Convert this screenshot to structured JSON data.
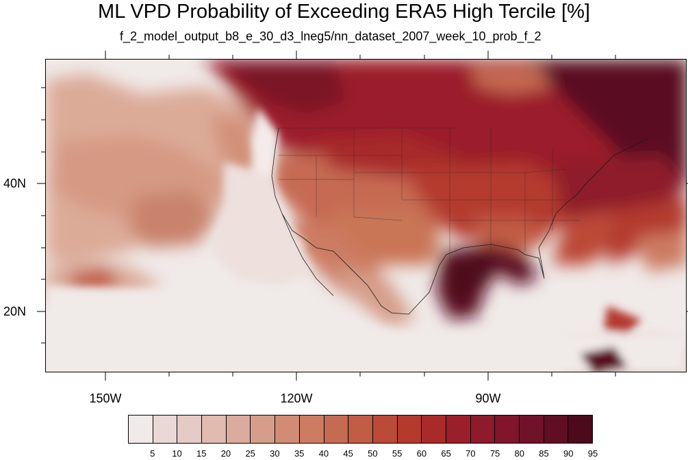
{
  "title": "ML VPD Probability of Exceeding ERA5 High Tercile [%]",
  "subtitle": "f_2_model_output_b8_e_30_d3_lneg5/nn_dataset_2007_week_10_prob_f_2",
  "map": {
    "lat_labels": [
      {
        "text": "40N",
        "value": 40
      },
      {
        "text": "20N",
        "value": 20
      }
    ],
    "lon_labels": [
      {
        "text": "150W",
        "value": -150
      },
      {
        "text": "120W",
        "value": -120
      },
      {
        "text": "90W",
        "value": -90
      }
    ],
    "extent": {
      "lon_min": -159.5,
      "lon_max": -59,
      "lat_min": 10.5,
      "lat_max": 59
    }
  },
  "colorbar": {
    "colors": [
      "#f0eae9",
      "#ead8d6",
      "#e5cbc5",
      "#e0bbb0",
      "#dbab9d",
      "#d69e8a",
      "#d18c75",
      "#cc7c62",
      "#c66b53",
      "#c15c45",
      "#bb4a38",
      "#b43a2e",
      "#a82b2a",
      "#9b1e2b",
      "#8e1a2c",
      "#80152b",
      "#701229",
      "#600e24",
      "#4d0a1c"
    ],
    "labels": [
      "5",
      "10",
      "15",
      "20",
      "25",
      "30",
      "35",
      "40",
      "45",
      "50",
      "55",
      "60",
      "65",
      "70",
      "75",
      "80",
      "85",
      "90",
      "95"
    ]
  }
}
